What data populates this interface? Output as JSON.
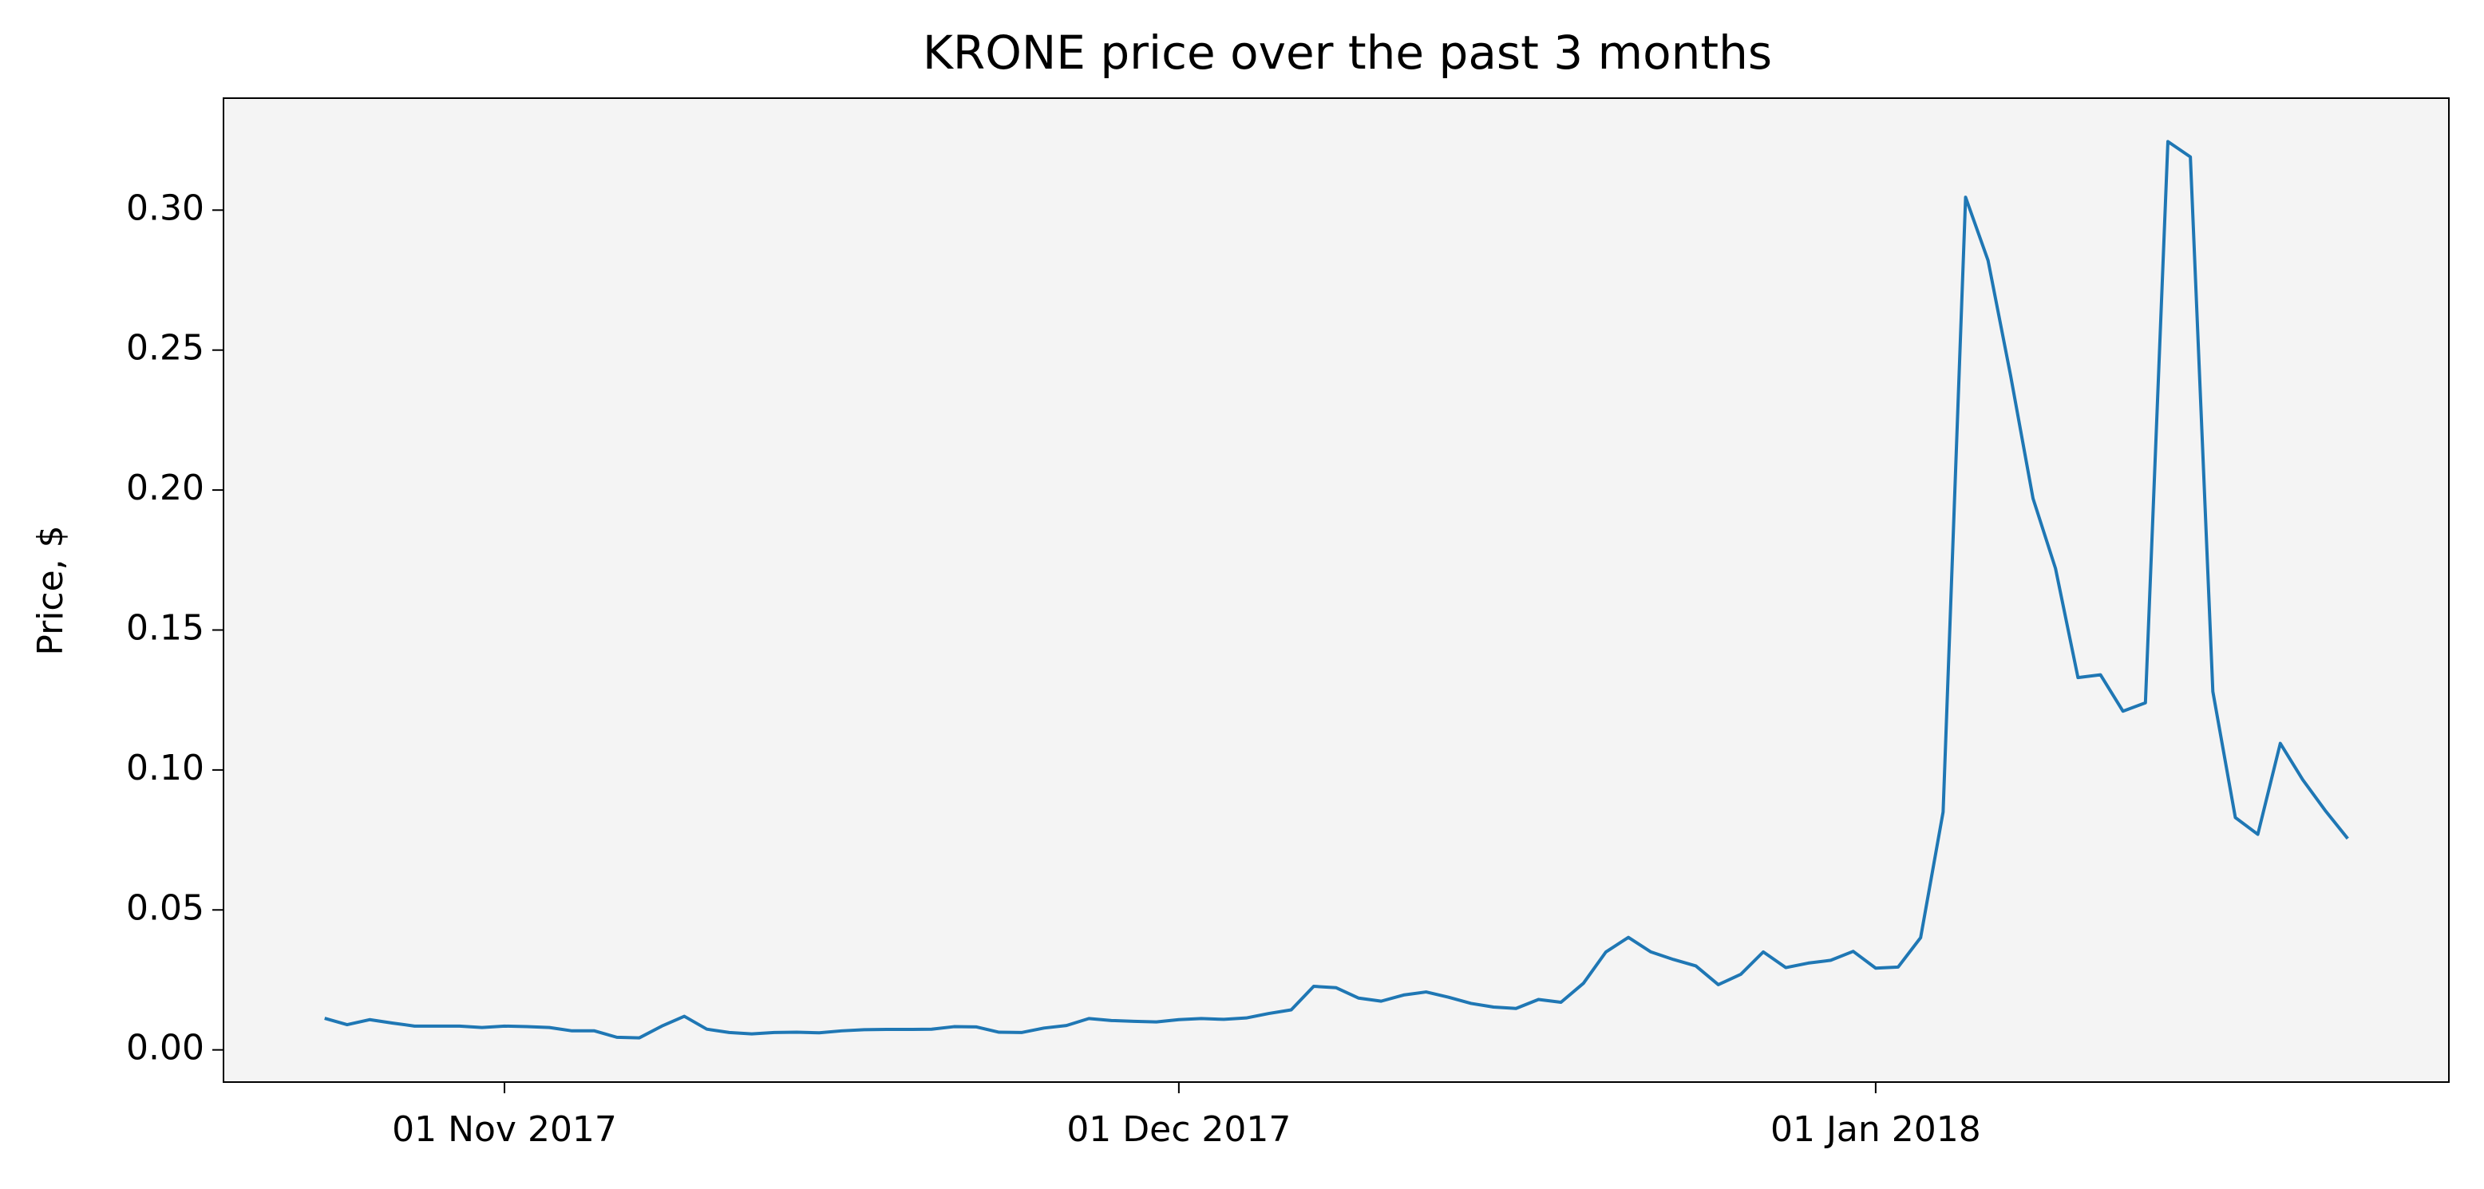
{
  "chart_data": {
    "type": "line",
    "title": "KRONE price over the past 3 months",
    "ylabel": "Price, $",
    "color": "#1f77b4",
    "x": [
      "2017-10-24",
      "2017-10-25",
      "2017-10-26",
      "2017-10-27",
      "2017-10-28",
      "2017-10-29",
      "2017-10-30",
      "2017-10-31",
      "2017-11-01",
      "2017-11-02",
      "2017-11-03",
      "2017-11-04",
      "2017-11-05",
      "2017-11-06",
      "2017-11-07",
      "2017-11-08",
      "2017-11-09",
      "2017-11-10",
      "2017-11-11",
      "2017-11-12",
      "2017-11-13",
      "2017-11-14",
      "2017-11-15",
      "2017-11-16",
      "2017-11-17",
      "2017-11-18",
      "2017-11-19",
      "2017-11-20",
      "2017-11-21",
      "2017-11-22",
      "2017-11-23",
      "2017-11-24",
      "2017-11-25",
      "2017-11-26",
      "2017-11-27",
      "2017-11-28",
      "2017-11-29",
      "2017-11-30",
      "2017-12-01",
      "2017-12-02",
      "2017-12-03",
      "2017-12-04",
      "2017-12-05",
      "2017-12-06",
      "2017-12-07",
      "2017-12-08",
      "2017-12-09",
      "2017-12-10",
      "2017-12-11",
      "2017-12-12",
      "2017-12-13",
      "2017-12-14",
      "2017-12-15",
      "2017-12-16",
      "2017-12-17",
      "2017-12-18",
      "2017-12-19",
      "2017-12-20",
      "2017-12-21",
      "2017-12-22",
      "2017-12-23",
      "2017-12-24",
      "2017-12-25",
      "2017-12-26",
      "2017-12-27",
      "2017-12-28",
      "2017-12-29",
      "2017-12-30",
      "2017-12-31",
      "2018-01-01",
      "2018-01-02",
      "2018-01-03",
      "2018-01-04",
      "2018-01-05",
      "2018-01-06",
      "2018-01-07",
      "2018-01-08",
      "2018-01-09",
      "2018-01-10",
      "2018-01-11",
      "2018-01-12",
      "2018-01-13",
      "2018-01-14",
      "2018-01-15",
      "2018-01-16",
      "2018-01-17",
      "2018-01-18",
      "2018-01-19",
      "2018-01-20",
      "2018-01-21",
      "2018-01-22"
    ],
    "values": [
      0.0113,
      0.009,
      0.0108,
      0.0096,
      0.0085,
      0.0085,
      0.0085,
      0.008,
      0.0085,
      0.0083,
      0.008,
      0.0068,
      0.0068,
      0.0045,
      0.0043,
      0.0085,
      0.012,
      0.0074,
      0.0062,
      0.0057,
      0.0062,
      0.0063,
      0.0061,
      0.0068,
      0.0072,
      0.0073,
      0.0073,
      0.0074,
      0.0083,
      0.0082,
      0.0063,
      0.0062,
      0.0078,
      0.0087,
      0.0112,
      0.0105,
      0.0102,
      0.01,
      0.0108,
      0.0112,
      0.0109,
      0.0114,
      0.013,
      0.0143,
      0.0227,
      0.0222,
      0.0185,
      0.0174,
      0.0196,
      0.0207,
      0.0188,
      0.0166,
      0.0153,
      0.0148,
      0.018,
      0.017,
      0.0238,
      0.035,
      0.0402,
      0.035,
      0.0323,
      0.03,
      0.0233,
      0.027,
      0.035,
      0.0294,
      0.031,
      0.032,
      0.0352,
      0.0292,
      0.0296,
      0.0401,
      0.085,
      0.3046,
      0.282,
      0.241,
      0.197,
      0.172,
      0.133,
      0.134,
      0.121,
      0.124,
      0.3245,
      0.319,
      0.128,
      0.083,
      0.077,
      0.1095,
      0.0965,
      0.0855,
      0.0755
    ],
    "xlim": [
      "2017-10-19T12:00",
      "2018-01-26T12:00"
    ],
    "xticks": [
      {
        "value": "2017-11-01",
        "label": "01 Nov 2017"
      },
      {
        "value": "2017-12-01",
        "label": "01 Dec 2017"
      },
      {
        "value": "2018-01-01",
        "label": "01 Jan 2018"
      }
    ],
    "ylim": [
      -0.0115,
      0.34
    ],
    "yticks": [
      {
        "value": 0,
        "label": "0.00"
      },
      {
        "value": 0.05,
        "label": "0.05"
      },
      {
        "value": 0.1,
        "label": "0.10"
      },
      {
        "value": 0.15,
        "label": "0.15"
      },
      {
        "value": 0.2,
        "label": "0.20"
      },
      {
        "value": 0.25,
        "label": "0.25"
      },
      {
        "value": 0.3,
        "label": "0.30"
      }
    ],
    "background": "#f4f4f4"
  }
}
